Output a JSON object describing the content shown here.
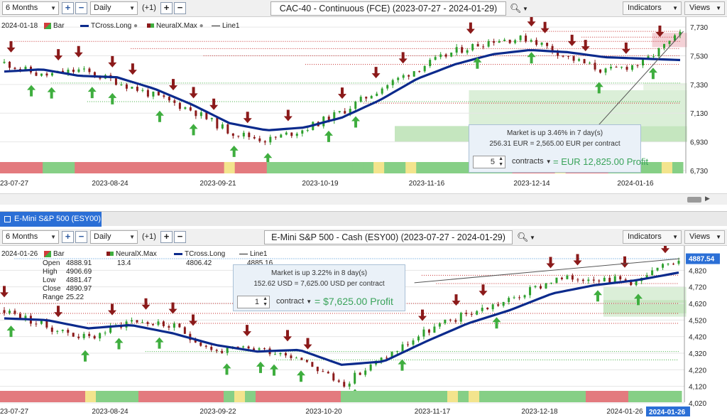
{
  "top_toolbar": {
    "range": "6 Months",
    "interval": "Daily",
    "offset": "(+1)",
    "title": "CAC-40 - Continuous (FCE) (2023-07-27 - 2024-01-29)",
    "indicators": "Indicators",
    "views": "Views"
  },
  "bottom_tab": {
    "label": "E-Mini S&P 500 (ESY00)"
  },
  "bottom_toolbar": {
    "range": "6 Months",
    "interval": "Daily",
    "offset": "(+1)",
    "title": "E-Mini S&P 500 - Cash (ESY00) (2023-07-27 - 2024-01-29)",
    "indicators": "Indicators",
    "views": "Views"
  },
  "top_legend": {
    "date": "2024-01-18",
    "bar": "Bar",
    "tcross": "TCross.Long",
    "neuralx": "NeuralX.Max",
    "line1": "Line1"
  },
  "bottom_legend": {
    "date": "2024-01-26",
    "bar": "Bar",
    "neuralx": "NeuralX.Max",
    "neuralx_val": "13.4",
    "tcross": "TCross.Long",
    "tcross_val": "4806.42",
    "line1": "Line1",
    "line1_val": "4885.16",
    "ohlc": [
      {
        "k": "Open",
        "v": "4888.91"
      },
      {
        "k": "High",
        "v": "4906.69"
      },
      {
        "k": "Low",
        "v": "4881.47"
      },
      {
        "k": "Close",
        "v": "4890.97"
      },
      {
        "k": "Range",
        "v": "25.22"
      }
    ]
  },
  "top_info": {
    "line1": "Market is up 3.46% in 7 day(s)",
    "line2": "256.31 EUR = 2,565.00 EUR per contract",
    "qty": "5",
    "unit": "contracts",
    "profit": "= EUR 12,825.00 Profit"
  },
  "bottom_info": {
    "line1": "Market is up 3.22% in 8 day(s)",
    "line2": "152.62 USD = 7,625.00 USD per contract",
    "qty": "1",
    "unit": "contract",
    "profit": "= $7,625.00 Profit"
  },
  "colors": {
    "tcross": "#0b2a8c",
    "up": "#3fae3f",
    "down": "#8b1a1a",
    "zone_green": "#d9eed6",
    "zone_red": "#f2c9cf",
    "accent": "#2b6fd6"
  },
  "chart_data": [
    {
      "type": "line",
      "title": "CAC-40 - Continuous (FCE)",
      "x_labels": [
        "2023-07-27",
        "2023-08-24",
        "2023-09-21",
        "2023-10-19",
        "2023-11-16",
        "2023-12-14",
        "2024-01-16"
      ],
      "y_ticks": [
        6730,
        6930,
        7130,
        7330,
        7530,
        7730
      ],
      "ylim": [
        6700,
        7780
      ],
      "series": [
        {
          "name": "TCross.Long",
          "values": [
            7420,
            7435,
            7390,
            7380,
            7300,
            7190,
            7060,
            7010,
            7030,
            7100,
            7220,
            7370,
            7470,
            7540,
            7570,
            7555,
            7520,
            7510,
            7500
          ]
        },
        {
          "name": "Bar",
          "values": [
            7480,
            7390,
            7430,
            7350,
            7250,
            7150,
            7000,
            6940,
            7020,
            7140,
            7300,
            7440,
            7560,
            7640,
            7650,
            7520,
            7420,
            7480,
            7680
          ]
        }
      ]
    },
    {
      "type": "line",
      "title": "E-Mini S&P 500 - Cash (ESY00)",
      "x_labels": [
        "2023-07-27",
        "2023-08-24",
        "2023-09-22",
        "2023-10-20",
        "2023-11-17",
        "2023-12-18",
        "2024-01-26"
      ],
      "y_ticks": [
        4020,
        4120,
        4220,
        4320,
        4420,
        4520,
        4620,
        4720,
        4820
      ],
      "ylim": [
        3990,
        4950
      ],
      "last_price": "4887.54",
      "series": [
        {
          "name": "TCross.Long",
          "values": [
            4530,
            4520,
            4470,
            4490,
            4440,
            4370,
            4330,
            4340,
            4250,
            4270,
            4390,
            4500,
            4580,
            4680,
            4730,
            4760,
            4806
          ]
        },
        {
          "name": "Bar",
          "values": [
            4580,
            4480,
            4410,
            4520,
            4480,
            4330,
            4350,
            4300,
            4130,
            4290,
            4450,
            4560,
            4640,
            4760,
            4780,
            4750,
            4891
          ]
        }
      ]
    }
  ]
}
